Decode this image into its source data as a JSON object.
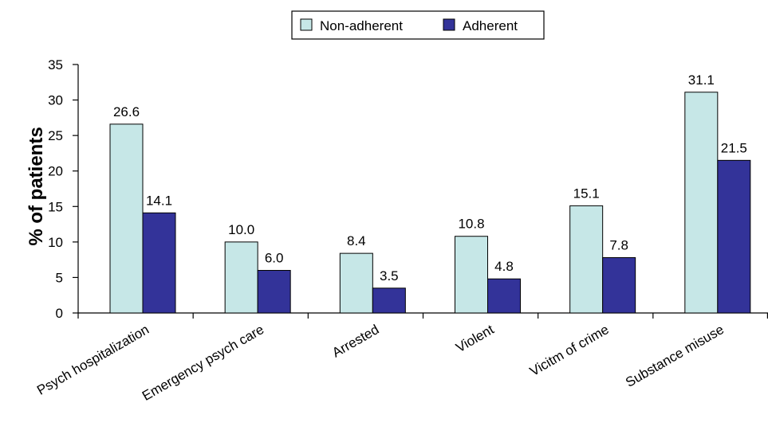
{
  "chart_data": {
    "type": "bar",
    "title": "",
    "xlabel": "",
    "ylabel": "% of patients",
    "ylim": [
      0,
      35
    ],
    "yticks": [
      0,
      5,
      10,
      15,
      20,
      25,
      30,
      35
    ],
    "grid": false,
    "legend_position": "top-center",
    "categories": [
      "Psych hospitalization",
      "Emergency psych care",
      "Arrested",
      "Violent",
      "Vicitm of crime",
      "Substance misuse"
    ],
    "series": [
      {
        "name": "Non-adherent",
        "color": "#c6e7e7",
        "values": [
          26.6,
          10.0,
          8.4,
          10.8,
          15.1,
          31.1
        ],
        "labels": [
          "26.6",
          "10.0",
          "8.4",
          "10.8",
          "15.1",
          "31.1"
        ]
      },
      {
        "name": "Adherent",
        "color": "#333399",
        "values": [
          14.1,
          6.0,
          3.5,
          4.8,
          7.8,
          21.5
        ],
        "labels": [
          "14.1",
          "6.0",
          "3.5",
          "4.8",
          "7.8",
          "21.5"
        ]
      }
    ]
  }
}
